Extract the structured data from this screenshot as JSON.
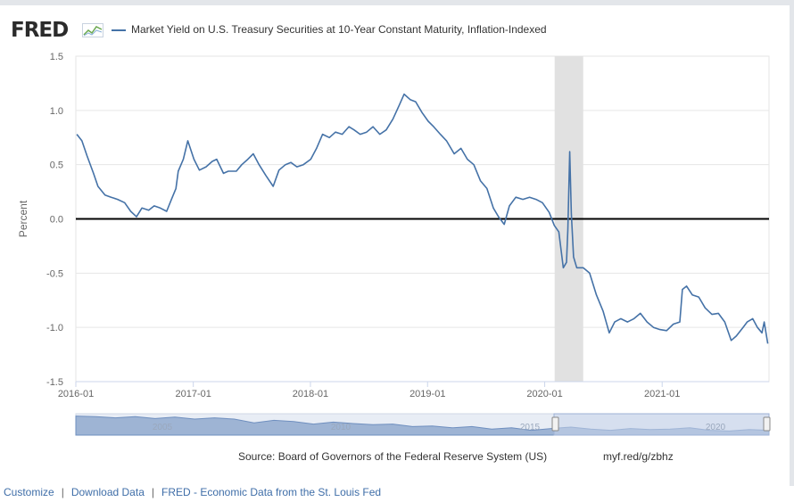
{
  "header": {
    "logo_text": "FRED",
    "legend_label": "Market Yield on U.S. Treasury Securities at 10-Year Constant Maturity, Inflation-Indexed"
  },
  "colors": {
    "series": "#4572a7",
    "recession": "#e1e1e1",
    "zero_line": "#000000",
    "navigator_fill": "#9eb4d4",
    "navigator_window": "#c6d3ea",
    "link": "#3f6ea8"
  },
  "chart_data": {
    "type": "line",
    "title": "Market Yield on U.S. Treasury Securities at 10-Year Constant Maturity, Inflation-Indexed",
    "xlabel": "",
    "ylabel": "Percent",
    "ylim": [
      -1.5,
      1.5
    ],
    "xlim": [
      "2016-01-01",
      "2021-11-30"
    ],
    "y_ticks": [
      "1.5",
      "1.0",
      "0.5",
      "0.0",
      "-0.5",
      "-1.0",
      "-1.5"
    ],
    "x_ticks": [
      "2016-01",
      "2017-01",
      "2018-01",
      "2019-01",
      "2020-01",
      "2021-01"
    ],
    "grid": true,
    "legend": "top-left",
    "recession": {
      "start": "2020-02-01",
      "end": "2020-04-30"
    },
    "series": [
      {
        "name": "Market Yield on U.S. Treasury Securities at 10-Year Constant Maturity, Inflation-Indexed",
        "x": [
          "2016-01-04",
          "2016-01-20",
          "2016-02-05",
          "2016-02-25",
          "2016-03-10",
          "2016-04-01",
          "2016-04-20",
          "2016-05-10",
          "2016-06-01",
          "2016-06-20",
          "2016-07-08",
          "2016-07-25",
          "2016-08-15",
          "2016-09-01",
          "2016-09-20",
          "2016-10-10",
          "2016-10-25",
          "2016-11-08",
          "2016-11-15",
          "2016-12-01",
          "2016-12-15",
          "2017-01-03",
          "2017-01-20",
          "2017-02-10",
          "2017-03-01",
          "2017-03-15",
          "2017-04-05",
          "2017-04-20",
          "2017-05-15",
          "2017-06-01",
          "2017-06-20",
          "2017-07-07",
          "2017-07-25",
          "2017-08-15",
          "2017-09-07",
          "2017-09-25",
          "2017-10-15",
          "2017-11-01",
          "2017-11-20",
          "2017-12-10",
          "2018-01-02",
          "2018-01-20",
          "2018-02-08",
          "2018-03-01",
          "2018-03-20",
          "2018-04-10",
          "2018-05-01",
          "2018-05-17",
          "2018-06-05",
          "2018-06-25",
          "2018-07-15",
          "2018-08-05",
          "2018-08-25",
          "2018-09-15",
          "2018-10-05",
          "2018-10-20",
          "2018-11-08",
          "2018-11-25",
          "2018-12-15",
          "2019-01-03",
          "2019-01-20",
          "2019-02-10",
          "2019-03-01",
          "2019-03-25",
          "2019-04-15",
          "2019-05-05",
          "2019-05-25",
          "2019-06-15",
          "2019-07-05",
          "2019-07-25",
          "2019-08-10",
          "2019-08-28",
          "2019-09-13",
          "2019-10-03",
          "2019-10-25",
          "2019-11-15",
          "2019-12-05",
          "2019-12-25",
          "2020-01-15",
          "2020-01-31",
          "2020-02-14",
          "2020-02-28",
          "2020-03-09",
          "2020-03-13",
          "2020-03-19",
          "2020-03-24",
          "2020-03-31",
          "2020-04-10",
          "2020-04-30",
          "2020-05-20",
          "2020-06-10",
          "2020-07-01",
          "2020-07-20",
          "2020-08-06",
          "2020-08-25",
          "2020-09-15",
          "2020-10-05",
          "2020-10-25",
          "2020-11-15",
          "2020-12-05",
          "2020-12-25",
          "2021-01-15",
          "2021-02-05",
          "2021-02-25",
          "2021-03-05",
          "2021-03-18",
          "2021-04-05",
          "2021-04-25",
          "2021-05-15",
          "2021-06-05",
          "2021-06-25",
          "2021-07-15",
          "2021-08-04",
          "2021-08-20",
          "2021-09-10",
          "2021-09-23",
          "2021-10-10",
          "2021-10-25",
          "2021-11-08",
          "2021-11-15",
          "2021-11-26"
        ],
        "values": [
          0.78,
          0.72,
          0.58,
          0.42,
          0.3,
          0.22,
          0.2,
          0.18,
          0.15,
          0.07,
          0.02,
          0.1,
          0.08,
          0.12,
          0.1,
          0.07,
          0.18,
          0.28,
          0.44,
          0.55,
          0.72,
          0.55,
          0.45,
          0.48,
          0.53,
          0.55,
          0.42,
          0.44,
          0.44,
          0.5,
          0.55,
          0.6,
          0.5,
          0.4,
          0.3,
          0.45,
          0.5,
          0.52,
          0.48,
          0.5,
          0.55,
          0.65,
          0.78,
          0.75,
          0.8,
          0.78,
          0.85,
          0.82,
          0.78,
          0.8,
          0.85,
          0.78,
          0.82,
          0.92,
          1.05,
          1.15,
          1.1,
          1.08,
          0.98,
          0.9,
          0.85,
          0.78,
          0.72,
          0.6,
          0.65,
          0.55,
          0.5,
          0.35,
          0.28,
          0.1,
          0.02,
          -0.05,
          0.12,
          0.2,
          0.18,
          0.2,
          0.18,
          0.15,
          0.06,
          -0.06,
          -0.12,
          -0.45,
          -0.4,
          -0.1,
          0.62,
          0.05,
          -0.35,
          -0.45,
          -0.45,
          -0.5,
          -0.7,
          -0.85,
          -1.05,
          -0.95,
          -0.92,
          -0.95,
          -0.92,
          -0.87,
          -0.95,
          -1.0,
          -1.02,
          -1.03,
          -0.97,
          -0.95,
          -0.65,
          -0.62,
          -0.7,
          -0.72,
          -0.82,
          -0.88,
          -0.87,
          -0.95,
          -1.12,
          -1.08,
          -1.0,
          -0.95,
          -0.92,
          -1.0,
          -1.05,
          -0.95,
          -1.15
        ]
      }
    ]
  },
  "navigator": {
    "labels": [
      "2005",
      "2010",
      "2015",
      "2020"
    ]
  },
  "source_text": "Source: Board of Governors of the Federal Reserve System (US)",
  "short_link": "myf.red/g/zbhz",
  "footer": {
    "customize": "Customize",
    "download": "Download Data",
    "fred_link": "FRED - Economic Data from the St. Louis Fed",
    "separator": "|"
  }
}
